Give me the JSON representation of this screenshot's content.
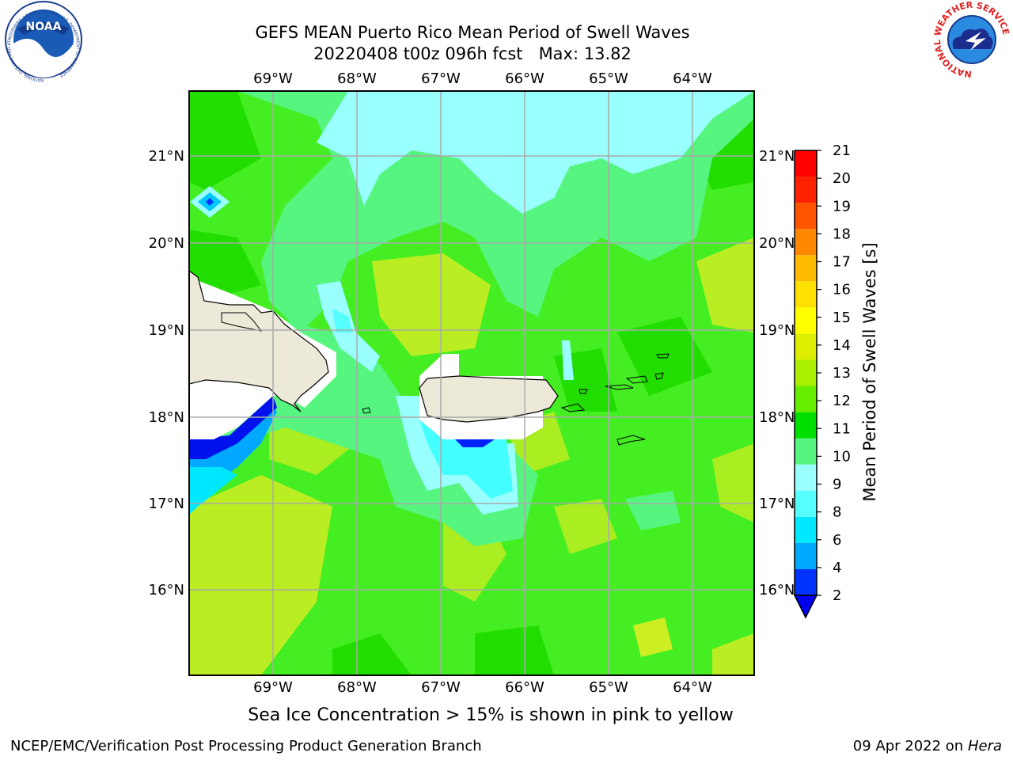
{
  "header": {
    "title_line1": "GEFS MEAN Puerto Rico Mean Period of Swell Waves",
    "title_line2": "20220408 t00z 096h fcst   Max: 13.82"
  },
  "logos": {
    "noaa": {
      "text": "NOAA",
      "ring_text": "NATIONAL OCEANIC AND ATMOSPHERIC ADMINISTRATION · U.S. DEPARTMENT OF COMMERCE"
    },
    "nws": {
      "ring_text": "NATIONAL WEATHER SERVICE"
    }
  },
  "map": {
    "lon_labels": [
      "69°W",
      "68°W",
      "67°W",
      "66°W",
      "65°W",
      "64°W"
    ],
    "lat_labels": [
      "21°N",
      "20°N",
      "19°N",
      "18°N",
      "17°N",
      "16°N"
    ],
    "extent": {
      "lon_min": -70.0,
      "lon_max": -63.3,
      "lat_min": 15.0,
      "lat_max": 21.75
    },
    "ocean_color": "#44ee22"
  },
  "colorbar": {
    "label": "Mean Period of Swell Waves [s]",
    "ticks": [
      "2",
      "4",
      "6",
      "8",
      "9",
      "10",
      "11",
      "12",
      "13",
      "14",
      "15",
      "16",
      "17",
      "18",
      "19",
      "20",
      "21"
    ],
    "colors": [
      "#0033ff",
      "#00a8ff",
      "#00e8ff",
      "#55ffff",
      "#99ffff",
      "#55f580",
      "#00e000",
      "#66ee00",
      "#aaee00",
      "#ddee00",
      "#ffff00",
      "#ffe000",
      "#ffbb00",
      "#ff8800",
      "#ff5500",
      "#ff2200",
      "#ff0000"
    ],
    "under_color": "#0000ee"
  },
  "ice_note": "Sea Ice Concentration > 15% is shown in pink to yellow",
  "footer": {
    "left": "NCEP/EMC/Verification Post Processing Product Generation Branch",
    "right_date": "09 Apr 2022 on ",
    "right_machine": "Hera"
  }
}
